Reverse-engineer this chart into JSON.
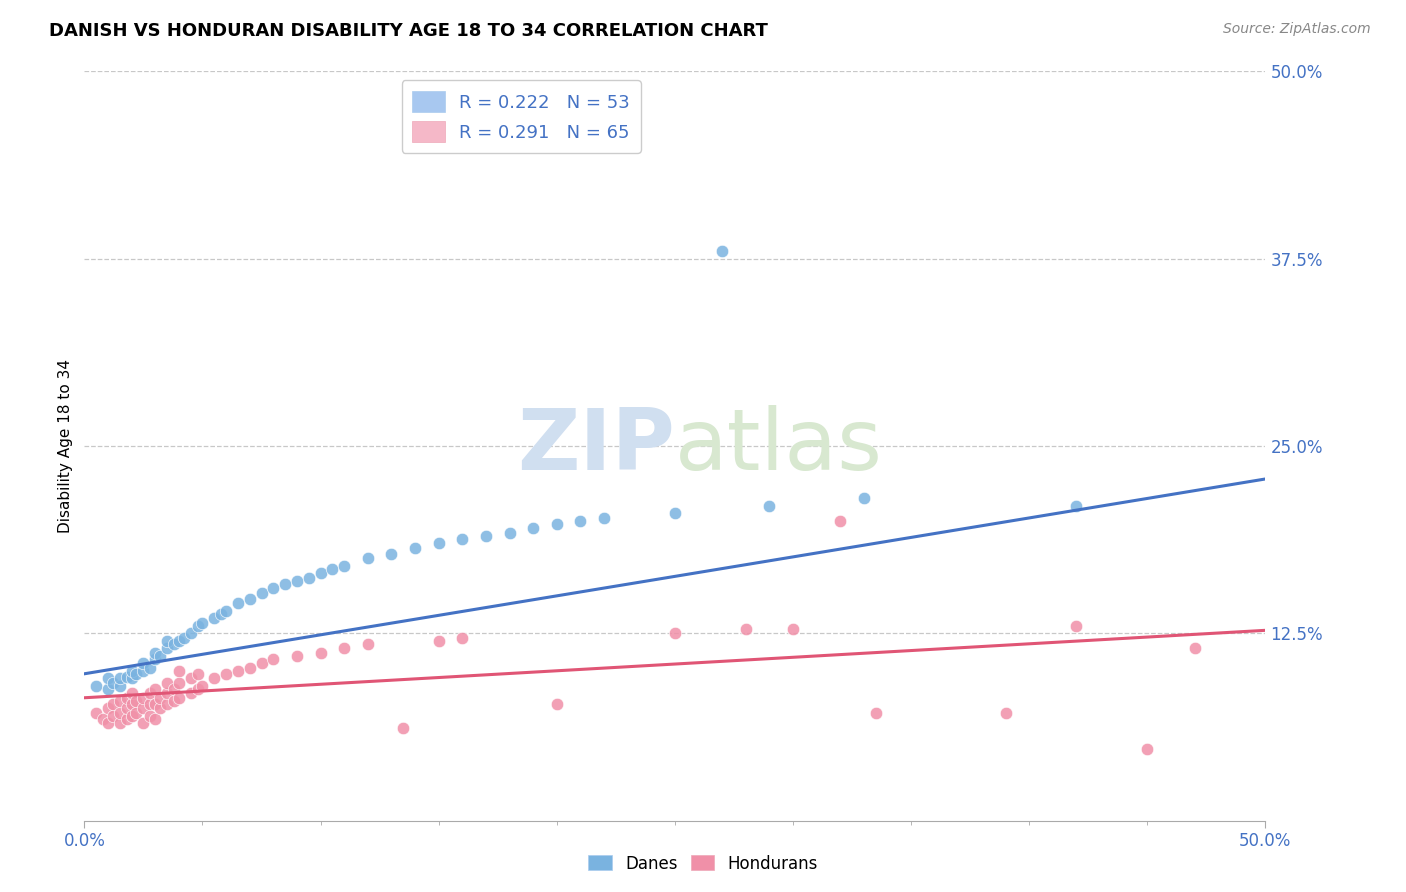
{
  "title": "DANISH VS HONDURAN DISABILITY AGE 18 TO 34 CORRELATION CHART",
  "source_text": "Source: ZipAtlas.com",
  "ylabel": "Disability Age 18 to 34",
  "xlabel": "",
  "xlim": [
    0.0,
    0.5
  ],
  "ylim": [
    0.0,
    0.5
  ],
  "ytick_values": [
    0.125,
    0.25,
    0.375,
    0.5
  ],
  "ytick_labels": [
    "12.5%",
    "25.0%",
    "37.5%",
    "50.0%"
  ],
  "danes_color": "#7ab3e0",
  "hondurans_color": "#f090a8",
  "dane_line_color": "#4472c4",
  "honduran_line_color": "#e05575",
  "legend_patch_danes": "#a8c8f0",
  "legend_patch_hondurans": "#f5b8c8",
  "watermark_zip": "ZIP",
  "watermark_atlas": "atlas",
  "dane_line_x0": 0.0,
  "dane_line_y0": 0.098,
  "dane_line_x1": 0.5,
  "dane_line_y1": 0.228,
  "hon_line_x0": 0.0,
  "hon_line_y0": 0.082,
  "hon_line_x1": 0.5,
  "hon_line_y1": 0.127,
  "danes_scatter": [
    [
      0.005,
      0.09
    ],
    [
      0.01,
      0.088
    ],
    [
      0.01,
      0.095
    ],
    [
      0.012,
      0.092
    ],
    [
      0.015,
      0.09
    ],
    [
      0.015,
      0.095
    ],
    [
      0.018,
      0.096
    ],
    [
      0.02,
      0.095
    ],
    [
      0.02,
      0.1
    ],
    [
      0.022,
      0.098
    ],
    [
      0.025,
      0.1
    ],
    [
      0.025,
      0.105
    ],
    [
      0.028,
      0.102
    ],
    [
      0.03,
      0.108
    ],
    [
      0.03,
      0.112
    ],
    [
      0.032,
      0.11
    ],
    [
      0.035,
      0.115
    ],
    [
      0.035,
      0.12
    ],
    [
      0.038,
      0.118
    ],
    [
      0.04,
      0.12
    ],
    [
      0.042,
      0.122
    ],
    [
      0.045,
      0.125
    ],
    [
      0.048,
      0.13
    ],
    [
      0.05,
      0.132
    ],
    [
      0.055,
      0.135
    ],
    [
      0.058,
      0.138
    ],
    [
      0.06,
      0.14
    ],
    [
      0.065,
      0.145
    ],
    [
      0.07,
      0.148
    ],
    [
      0.075,
      0.152
    ],
    [
      0.08,
      0.155
    ],
    [
      0.085,
      0.158
    ],
    [
      0.09,
      0.16
    ],
    [
      0.095,
      0.162
    ],
    [
      0.1,
      0.165
    ],
    [
      0.105,
      0.168
    ],
    [
      0.11,
      0.17
    ],
    [
      0.12,
      0.175
    ],
    [
      0.13,
      0.178
    ],
    [
      0.14,
      0.182
    ],
    [
      0.15,
      0.185
    ],
    [
      0.16,
      0.188
    ],
    [
      0.17,
      0.19
    ],
    [
      0.18,
      0.192
    ],
    [
      0.19,
      0.195
    ],
    [
      0.2,
      0.198
    ],
    [
      0.21,
      0.2
    ],
    [
      0.22,
      0.202
    ],
    [
      0.25,
      0.205
    ],
    [
      0.27,
      0.38
    ],
    [
      0.29,
      0.21
    ],
    [
      0.33,
      0.215
    ],
    [
      0.42,
      0.21
    ]
  ],
  "hondurans_scatter": [
    [
      0.005,
      0.072
    ],
    [
      0.008,
      0.068
    ],
    [
      0.01,
      0.065
    ],
    [
      0.01,
      0.075
    ],
    [
      0.012,
      0.07
    ],
    [
      0.012,
      0.078
    ],
    [
      0.015,
      0.065
    ],
    [
      0.015,
      0.072
    ],
    [
      0.015,
      0.08
    ],
    [
      0.018,
      0.068
    ],
    [
      0.018,
      0.075
    ],
    [
      0.018,
      0.082
    ],
    [
      0.02,
      0.07
    ],
    [
      0.02,
      0.078
    ],
    [
      0.02,
      0.085
    ],
    [
      0.022,
      0.072
    ],
    [
      0.022,
      0.08
    ],
    [
      0.025,
      0.065
    ],
    [
      0.025,
      0.075
    ],
    [
      0.025,
      0.082
    ],
    [
      0.028,
      0.07
    ],
    [
      0.028,
      0.078
    ],
    [
      0.028,
      0.085
    ],
    [
      0.03,
      0.068
    ],
    [
      0.03,
      0.078
    ],
    [
      0.03,
      0.088
    ],
    [
      0.032,
      0.075
    ],
    [
      0.032,
      0.082
    ],
    [
      0.035,
      0.078
    ],
    [
      0.035,
      0.085
    ],
    [
      0.035,
      0.092
    ],
    [
      0.038,
      0.08
    ],
    [
      0.038,
      0.088
    ],
    [
      0.04,
      0.082
    ],
    [
      0.04,
      0.092
    ],
    [
      0.04,
      0.1
    ],
    [
      0.045,
      0.085
    ],
    [
      0.045,
      0.095
    ],
    [
      0.048,
      0.088
    ],
    [
      0.048,
      0.098
    ],
    [
      0.05,
      0.09
    ],
    [
      0.055,
      0.095
    ],
    [
      0.06,
      0.098
    ],
    [
      0.065,
      0.1
    ],
    [
      0.07,
      0.102
    ],
    [
      0.075,
      0.105
    ],
    [
      0.08,
      0.108
    ],
    [
      0.09,
      0.11
    ],
    [
      0.1,
      0.112
    ],
    [
      0.11,
      0.115
    ],
    [
      0.12,
      0.118
    ],
    [
      0.135,
      0.062
    ],
    [
      0.15,
      0.12
    ],
    [
      0.16,
      0.122
    ],
    [
      0.2,
      0.078
    ],
    [
      0.25,
      0.125
    ],
    [
      0.28,
      0.128
    ],
    [
      0.3,
      0.128
    ],
    [
      0.32,
      0.2
    ],
    [
      0.335,
      0.072
    ],
    [
      0.39,
      0.072
    ],
    [
      0.42,
      0.13
    ],
    [
      0.45,
      0.048
    ],
    [
      0.47,
      0.115
    ]
  ]
}
